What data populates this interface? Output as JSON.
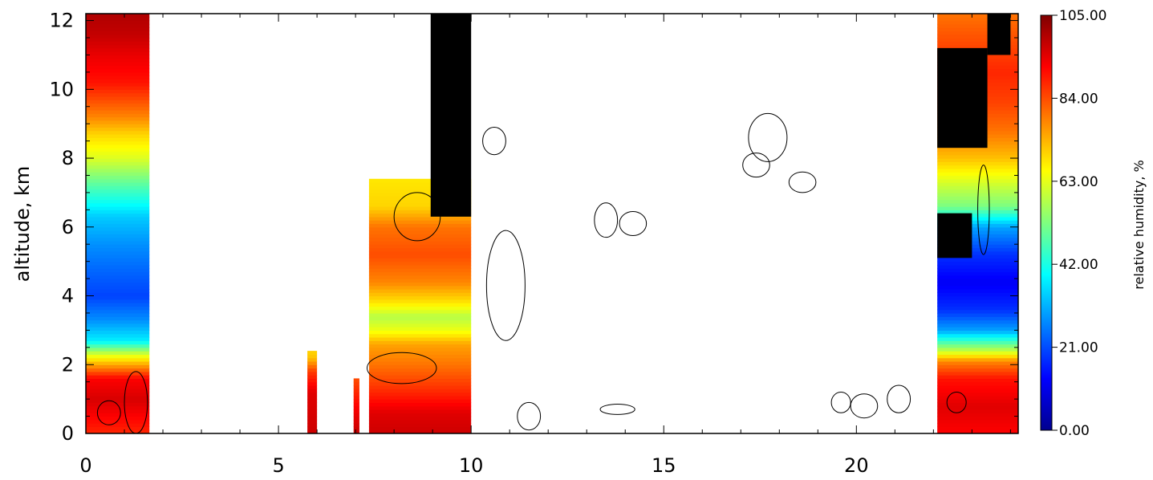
{
  "chart_data": {
    "type": "heatmap",
    "title": "",
    "xlabel": "",
    "ylabel": "altitude, km",
    "xlim": [
      0,
      24.2
    ],
    "ylim": [
      0,
      12.2
    ],
    "x_ticks": [
      0,
      5,
      10,
      15,
      20
    ],
    "y_ticks": [
      0,
      2,
      4,
      6,
      8,
      10,
      12
    ],
    "colorbar": {
      "label": "relative humidity, %",
      "range": [
        0,
        105
      ],
      "ticks": [
        "0.00",
        "21.00",
        "42.00",
        "63.00",
        "84.00",
        "105.00"
      ],
      "colors": [
        "#00008f",
        "#0000ff",
        "#007fff",
        "#00ffff",
        "#7fff7f",
        "#ffff00",
        "#ff7f00",
        "#ff0000",
        "#7f0000"
      ]
    },
    "data_blocks": [
      {
        "x": [
          0,
          1.65
        ],
        "y": [
          0,
          12.2
        ],
        "profile": [
          [
            0,
            88
          ],
          [
            0.5,
            92
          ],
          [
            1,
            96
          ],
          [
            1.6,
            92
          ],
          [
            2.0,
            75
          ],
          [
            2.3,
            62
          ],
          [
            2.7,
            38
          ],
          [
            3.3,
            28
          ],
          [
            4.0,
            20
          ],
          [
            4.8,
            24
          ],
          [
            5.5,
            28
          ],
          [
            6.3,
            34
          ],
          [
            7.2,
            48
          ],
          [
            8.0,
            62
          ],
          [
            8.7,
            70
          ],
          [
            9.2,
            78
          ],
          [
            9.7,
            84
          ],
          [
            10.2,
            90
          ],
          [
            11,
            94
          ],
          [
            11.6,
            98
          ],
          [
            12.2,
            100
          ]
        ]
      },
      {
        "x": [
          5.75,
          6.0
        ],
        "y": [
          0,
          2.4
        ],
        "profile": [
          [
            0,
            97
          ],
          [
            1.2,
            95
          ],
          [
            1.8,
            86
          ],
          [
            2.2,
            72
          ],
          [
            2.4,
            70
          ]
        ]
      },
      {
        "x": [
          6.95,
          7.1
        ],
        "y": [
          0,
          1.6
        ],
        "profile": [
          [
            0,
            98
          ],
          [
            0.8,
            92
          ],
          [
            1.6,
            84
          ]
        ]
      },
      {
        "x": [
          7.35,
          10.0
        ],
        "y": [
          0,
          7.4
        ],
        "profile": [
          [
            0,
            97
          ],
          [
            0.6,
            95
          ],
          [
            1.2,
            88
          ],
          [
            2.0,
            80
          ],
          [
            2.6,
            75
          ],
          [
            3.0,
            64
          ],
          [
            3.4,
            58
          ],
          [
            3.8,
            68
          ],
          [
            4.4,
            78
          ],
          [
            5.2,
            84
          ],
          [
            6.0,
            80
          ],
          [
            6.6,
            70
          ],
          [
            7.4,
            68
          ]
        ]
      },
      {
        "x": [
          22.1,
          24.2
        ],
        "y": [
          0,
          12.2
        ],
        "profile": [
          [
            0,
            92
          ],
          [
            0.8,
            95
          ],
          [
            1.6,
            90
          ],
          [
            2.1,
            78
          ],
          [
            2.4,
            60
          ],
          [
            3.0,
            30
          ],
          [
            3.6,
            18
          ],
          [
            4.4,
            12
          ],
          [
            5.2,
            18
          ],
          [
            6.0,
            30
          ],
          [
            6.6,
            52
          ],
          [
            7.2,
            60
          ],
          [
            8.0,
            72
          ],
          [
            8.8,
            80
          ],
          [
            9.6,
            85
          ],
          [
            10.5,
            88
          ],
          [
            11.4,
            84
          ],
          [
            12.2,
            80
          ]
        ]
      }
    ],
    "saturated_regions": [
      {
        "x": [
          8.95,
          10.0
        ],
        "y": [
          6.3,
          12.2
        ]
      },
      {
        "x": [
          22.1,
          23.4
        ],
        "y": [
          8.3,
          11.2
        ]
      },
      {
        "x": [
          22.1,
          23.0
        ],
        "y": [
          5.1,
          6.4
        ]
      },
      {
        "x": [
          23.4,
          24.0
        ],
        "y": [
          11.0,
          12.2
        ]
      }
    ],
    "cloud_contours": [
      {
        "cx": 0.6,
        "cy": 0.6,
        "rx": 0.3,
        "ry": 0.35
      },
      {
        "cx": 1.3,
        "cy": 0.9,
        "rx": 0.3,
        "ry": 0.9
      },
      {
        "cx": 8.2,
        "cy": 1.9,
        "rx": 0.9,
        "ry": 0.45
      },
      {
        "cx": 8.6,
        "cy": 6.3,
        "rx": 0.6,
        "ry": 0.7
      },
      {
        "cx": 10.9,
        "cy": 4.3,
        "rx": 0.5,
        "ry": 1.6
      },
      {
        "cx": 10.6,
        "cy": 8.5,
        "rx": 0.3,
        "ry": 0.4
      },
      {
        "cx": 11.5,
        "cy": 0.5,
        "rx": 0.3,
        "ry": 0.4
      },
      {
        "cx": 13.5,
        "cy": 6.2,
        "rx": 0.3,
        "ry": 0.5
      },
      {
        "cx": 14.2,
        "cy": 6.1,
        "rx": 0.35,
        "ry": 0.35
      },
      {
        "cx": 13.8,
        "cy": 0.7,
        "rx": 0.45,
        "ry": 0.15
      },
      {
        "cx": 17.7,
        "cy": 8.6,
        "rx": 0.5,
        "ry": 0.7
      },
      {
        "cx": 17.4,
        "cy": 7.8,
        "rx": 0.35,
        "ry": 0.35
      },
      {
        "cx": 18.6,
        "cy": 7.3,
        "rx": 0.35,
        "ry": 0.3
      },
      {
        "cx": 19.6,
        "cy": 0.9,
        "rx": 0.25,
        "ry": 0.3
      },
      {
        "cx": 20.2,
        "cy": 0.8,
        "rx": 0.35,
        "ry": 0.35
      },
      {
        "cx": 21.1,
        "cy": 1.0,
        "rx": 0.3,
        "ry": 0.4
      },
      {
        "cx": 22.6,
        "cy": 0.9,
        "rx": 0.25,
        "ry": 0.3
      },
      {
        "cx": 23.3,
        "cy": 6.5,
        "rx": 0.15,
        "ry": 1.3
      }
    ]
  }
}
